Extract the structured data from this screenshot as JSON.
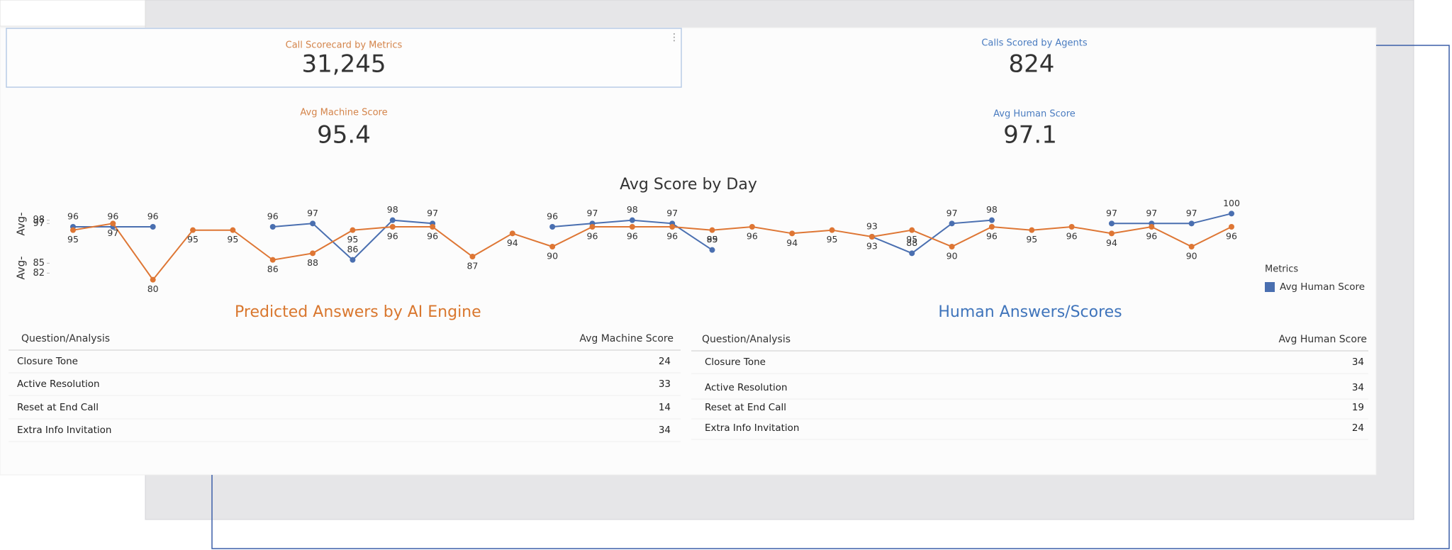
{
  "kpis": [
    {
      "title": "Call Scorecard by Metrics",
      "value": "31,245"
    },
    {
      "title": "Calls Scored by Agents",
      "value": "824"
    },
    {
      "title": "Avg Machine Score",
      "value": "95.4"
    },
    {
      "title": "Avg Human Score",
      "value": "97.1"
    }
  ],
  "chart_data": {
    "type": "line",
    "title": "Avg Score by Day",
    "ylabels": [
      "Avg-",
      "Avg-"
    ],
    "ylim": [
      78,
      102
    ],
    "yticks": [
      98,
      97,
      85,
      82
    ],
    "legend_title": "Metrics",
    "legend": "right",
    "series": [
      {
        "name": "Avg Human Score",
        "color": "#4a6fb0",
        "values": [
          96,
          96,
          96,
          null,
          null,
          96,
          97,
          86,
          98,
          97,
          null,
          null,
          96,
          97,
          98,
          97,
          89,
          null,
          null,
          null,
          93,
          88,
          97,
          98,
          null,
          null,
          97,
          97,
          97,
          100
        ]
      },
      {
        "color": "#de7634",
        "values": [
          95,
          97,
          80,
          95,
          95,
          86,
          88,
          95,
          96,
          96,
          87,
          94,
          90,
          96,
          96,
          96,
          95,
          96,
          94,
          95,
          93,
          95,
          90,
          96,
          95,
          96,
          94,
          96,
          90,
          96
        ]
      }
    ]
  },
  "tables": [
    {
      "title": "Predicted Answers by AI Engine",
      "columns": [
        "Question/Analysis",
        "Avg Machine Score"
      ],
      "rows": [
        [
          "Closure Tone",
          "24"
        ],
        [
          "Active Resolution",
          "33"
        ],
        [
          "Reset at End Call",
          "14"
        ],
        [
          "Extra Info Invitation",
          "34"
        ]
      ]
    },
    {
      "title": "Human Answers/Scores",
      "columns": [
        "Question/Analysis",
        "Avg Human Score"
      ],
      "rows": [
        [
          "Closure Tone",
          "34"
        ],
        [
          "Active Resolution",
          "34"
        ],
        [
          "Reset at End Call",
          "19"
        ],
        [
          "Extra Info Invitation",
          "24"
        ]
      ]
    }
  ]
}
